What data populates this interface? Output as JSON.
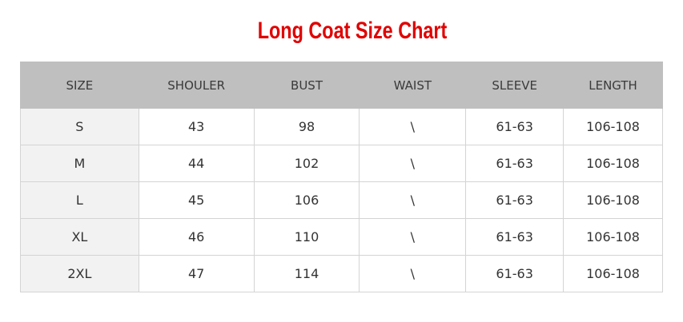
{
  "title": "Long Coat Size Chart",
  "colors": {
    "title": "#e00000",
    "header_bg": "#bfbfbf",
    "size_col_bg": "#f2f2f2"
  },
  "headers": [
    "SIZE",
    "SHOULER",
    "BUST",
    "WAIST",
    "SLEEVE",
    "LENGTH"
  ],
  "rows": [
    [
      "S",
      "43",
      "98",
      "\\",
      "61-63",
      "106-108"
    ],
    [
      "M",
      "44",
      "102",
      "\\",
      "61-63",
      "106-108"
    ],
    [
      "L",
      "45",
      "106",
      "\\",
      "61-63",
      "106-108"
    ],
    [
      "XL",
      "46",
      "110",
      "\\",
      "61-63",
      "106-108"
    ],
    [
      "2XL",
      "47",
      "114",
      "\\",
      "61-63",
      "106-108"
    ]
  ]
}
